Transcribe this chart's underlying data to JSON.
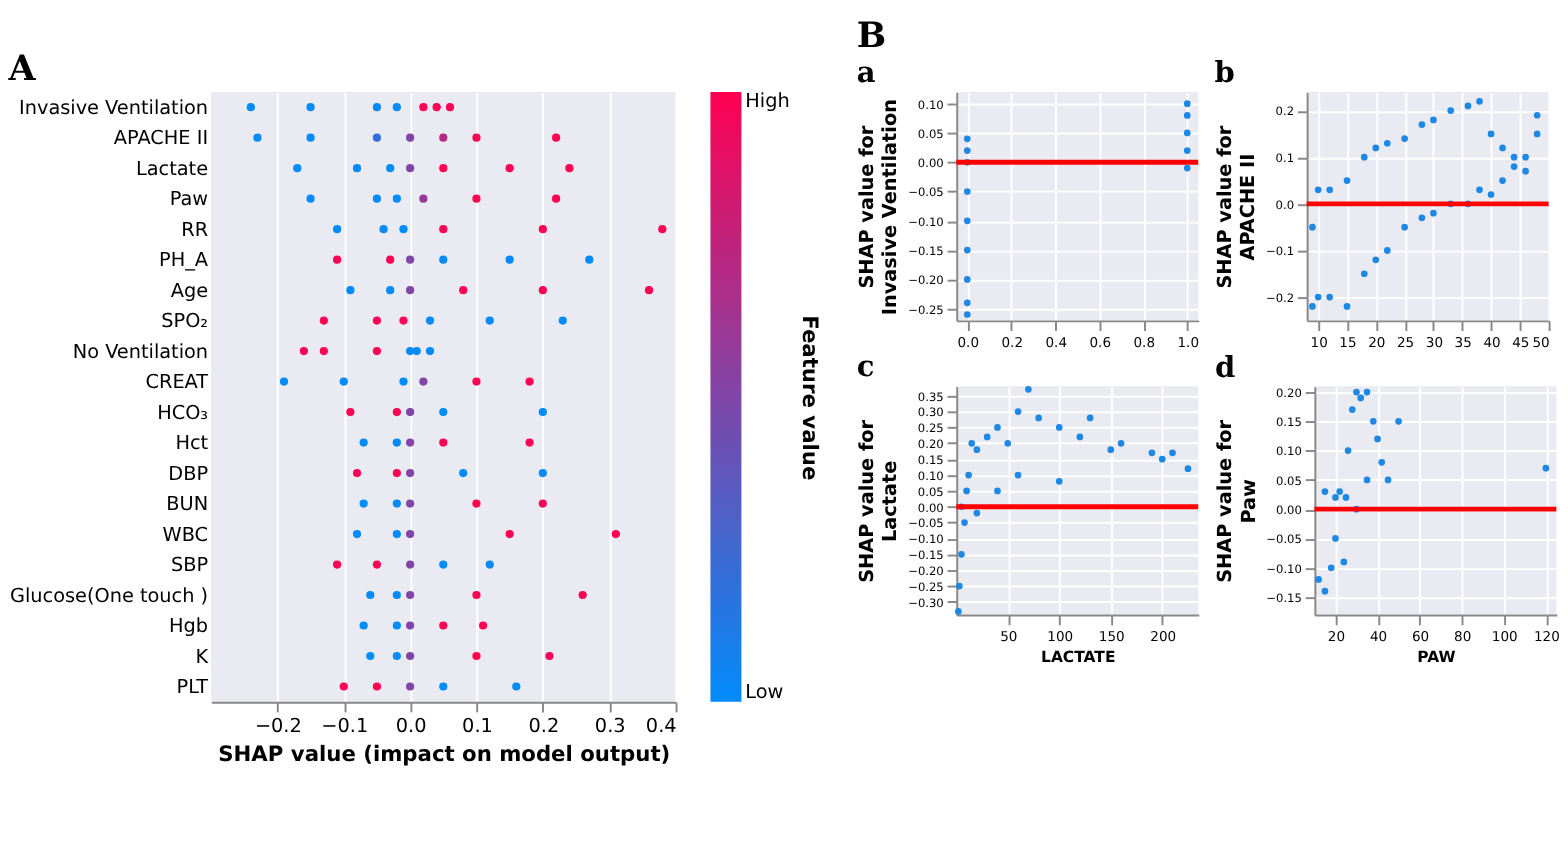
{
  "chart_data": [
    {
      "type": "scatter",
      "title": "A",
      "orientation": "horizontal",
      "xlabel": "SHAP value (impact on model output)",
      "clabel": "Feature value",
      "xlim": [
        -0.3,
        0.4
      ],
      "xticks": [
        {
          "value": -0.2,
          "label": "−0.2"
        },
        {
          "value": -0.1,
          "label": "−0.1"
        },
        {
          "value": 0,
          "label": "0.0"
        },
        0.1,
        0.2,
        0.3,
        0.4
      ],
      "clim": [
        0,
        1
      ],
      "cticks": [
        {
          "value": 0,
          "label": "Low"
        },
        {
          "value": 1,
          "label": "High"
        }
      ],
      "grid": "x",
      "marker": "circle",
      "categories": [
        "Invasive Ventilation",
        "APACHE II",
        "Lactate",
        "Paw",
        "RR",
        "PH_A",
        "Age",
        "SPO₂",
        "No Ventilation",
        "CREAT",
        "HCO₃",
        "Hct",
        "DBP",
        "BUN",
        "WBC",
        "SBP",
        "Glucose(One touch )",
        "Hgb",
        "K",
        "PLT"
      ],
      "series": [
        {
          "x": [
            "Invasive Ventilation",
            "Invasive Ventilation",
            "Invasive Ventilation",
            "Invasive Ventilation",
            "Invasive Ventilation",
            "Invasive Ventilation",
            "Invasive Ventilation",
            "APACHE II",
            "APACHE II",
            "APACHE II",
            "APACHE II",
            "APACHE II",
            "APACHE II",
            "APACHE II",
            "Lactate",
            "Lactate",
            "Lactate",
            "Lactate",
            "Lactate",
            "Lactate",
            "Lactate",
            "Paw",
            "Paw",
            "Paw",
            "Paw",
            "Paw",
            "Paw",
            "RR",
            "RR",
            "RR",
            "RR",
            "RR",
            "RR",
            "PH_A",
            "PH_A",
            "PH_A",
            "PH_A",
            "PH_A",
            "PH_A",
            "Age",
            "Age",
            "Age",
            "Age",
            "Age",
            "Age",
            "SPO₂",
            "SPO₂",
            "SPO₂",
            "SPO₂",
            "SPO₂",
            "SPO₂",
            "No Ventilation",
            "No Ventilation",
            "No Ventilation",
            "No Ventilation",
            "No Ventilation",
            "No Ventilation",
            "CREAT",
            "CREAT",
            "CREAT",
            "CREAT",
            "CREAT",
            "CREAT",
            "HCO₃",
            "HCO₃",
            "HCO₃",
            "HCO₃",
            "HCO₃",
            "Hct",
            "Hct",
            "Hct",
            "Hct",
            "Hct",
            "DBP",
            "DBP",
            "DBP",
            "DBP",
            "DBP",
            "BUN",
            "BUN",
            "BUN",
            "BUN",
            "BUN",
            "WBC",
            "WBC",
            "WBC",
            "WBC",
            "WBC",
            "SBP",
            "SBP",
            "SBP",
            "SBP",
            "SBP",
            "Glucose(One touch )",
            "Glucose(One touch )",
            "Glucose(One touch )",
            "Glucose(One touch )",
            "Glucose(One touch )",
            "Hgb",
            "Hgb",
            "Hgb",
            "Hgb",
            "Hgb",
            "K",
            "K",
            "K",
            "K",
            "K",
            "PLT",
            "PLT",
            "PLT",
            "PLT",
            "PLT"
          ],
          "values": [
            -0.24,
            -0.15,
            -0.05,
            -0.02,
            0.02,
            0.04,
            0.06,
            -0.23,
            -0.15,
            -0.05,
            0.0,
            0.05,
            0.1,
            0.22,
            -0.17,
            -0.08,
            -0.03,
            0.0,
            0.05,
            0.15,
            0.24,
            -0.15,
            -0.05,
            -0.02,
            0.02,
            0.1,
            0.22,
            -0.11,
            -0.04,
            -0.01,
            0.05,
            0.2,
            0.38,
            -0.11,
            -0.03,
            0.0,
            0.05,
            0.15,
            0.27,
            -0.09,
            -0.03,
            0.0,
            0.08,
            0.2,
            0.36,
            -0.13,
            -0.05,
            -0.01,
            0.03,
            0.12,
            0.23,
            -0.16,
            -0.13,
            -0.05,
            0.0,
            0.01,
            0.03,
            -0.19,
            -0.1,
            -0.01,
            0.02,
            0.1,
            0.18,
            -0.09,
            -0.02,
            0.0,
            0.05,
            0.2,
            -0.07,
            -0.02,
            0.0,
            0.05,
            0.18,
            -0.08,
            -0.02,
            0.0,
            0.08,
            0.2,
            -0.07,
            -0.02,
            0.0,
            0.1,
            0.2,
            -0.08,
            -0.02,
            0.0,
            0.15,
            0.31,
            -0.11,
            -0.05,
            0.0,
            0.05,
            0.12,
            -0.06,
            -0.02,
            0.0,
            0.1,
            0.26,
            -0.07,
            -0.02,
            0.0,
            0.05,
            0.11,
            -0.06,
            -0.02,
            0.0,
            0.1,
            0.21,
            -0.1,
            -0.05,
            0.0,
            0.05,
            0.16
          ],
          "cvalues": [
            0,
            0,
            0,
            0,
            1,
            1,
            1,
            0,
            0,
            0.2,
            0.5,
            0.7,
            1,
            1,
            0,
            0,
            0,
            0.5,
            1,
            1,
            1,
            0,
            0,
            0,
            0.6,
            1,
            1,
            0,
            0,
            0,
            1,
            1,
            1,
            1,
            1,
            0.5,
            0,
            0,
            0,
            0,
            0,
            0.5,
            1,
            1,
            1,
            1,
            1,
            1,
            0,
            0,
            0,
            1,
            1,
            1,
            0,
            0,
            0,
            0,
            0,
            0,
            0.5,
            1,
            1,
            1,
            1,
            0.5,
            0,
            0,
            0,
            0,
            0.5,
            1,
            1,
            1,
            1,
            0.5,
            0,
            0,
            0,
            0,
            0.5,
            1,
            1,
            0,
            0,
            0.5,
            1,
            1,
            1,
            1,
            0.5,
            0,
            0,
            0,
            0,
            0.5,
            1,
            1,
            0,
            0,
            0.5,
            1,
            1,
            0,
            0,
            0.5,
            1,
            1,
            1,
            1,
            0.5,
            0,
            0
          ]
        }
      ]
    },
    {
      "type": "scatter",
      "title": "a",
      "annotations": [
        "B"
      ],
      "ylabel": "SHAP value for\nInvasive Ventilation",
      "xlim": [
        -0.05,
        1.05
      ],
      "xticks": [
        {
          "value": 0,
          "label": "0.0"
        },
        0.2,
        0.4,
        0.6,
        0.8,
        {
          "value": 1,
          "label": "1.0"
        }
      ],
      "ylim": [
        -0.27,
        0.12
      ],
      "yticks": [
        {
          "value": -0.25,
          "label": "−0.25"
        },
        {
          "value": -0.2,
          "label": "−0.20"
        },
        {
          "value": -0.15,
          "label": "−0.15"
        },
        {
          "value": -0.1,
          "label": "−0.10"
        },
        {
          "value": -0.05,
          "label": "−0.05"
        },
        {
          "value": 0,
          "label": "0.00"
        },
        0.05,
        {
          "value": 0.1,
          "label": "0.10"
        }
      ],
      "grid": true,
      "marker": "circle",
      "ref_lines": [
        {
          "axis": "y",
          "value": 0,
          "color": "#ff0000"
        }
      ],
      "series": [
        {
          "color": "#1e88e5",
          "x": [
            0,
            0,
            0,
            0,
            0,
            0,
            0,
            0,
            0,
            1,
            1,
            1,
            1,
            1
          ],
          "values": [
            0.04,
            0.02,
            0.0,
            -0.05,
            -0.1,
            -0.15,
            -0.2,
            -0.24,
            -0.26,
            0.1,
            0.08,
            0.05,
            0.02,
            -0.01
          ]
        }
      ]
    },
    {
      "type": "scatter",
      "title": "b",
      "ylabel": "SHAP value for\nAPACHE II",
      "xlim": [
        8,
        50
      ],
      "xticks": [
        10,
        15,
        20,
        25,
        30,
        35,
        40,
        45,
        50
      ],
      "ylim": [
        -0.25,
        0.24
      ],
      "yticks": [
        {
          "value": -0.2,
          "label": "−0.2"
        },
        {
          "value": -0.1,
          "label": "−0.1"
        },
        {
          "value": 0,
          "label": "0.0"
        },
        0.1,
        0.2
      ],
      "grid": true,
      "marker": "circle",
      "ref_lines": [
        {
          "axis": "y",
          "value": 0,
          "color": "#ff0000"
        }
      ],
      "series": [
        {
          "color": "#1e88e5",
          "x": [
            9,
            9,
            10,
            10,
            12,
            12,
            15,
            15,
            18,
            18,
            20,
            20,
            22,
            22,
            25,
            25,
            28,
            28,
            30,
            30,
            33,
            33,
            36,
            36,
            38,
            38,
            40,
            40,
            42,
            42,
            44,
            44,
            46,
            46,
            48,
            48
          ],
          "values": [
            -0.22,
            -0.05,
            -0.2,
            0.03,
            -0.2,
            0.03,
            -0.22,
            0.05,
            -0.15,
            0.1,
            -0.12,
            0.12,
            -0.1,
            0.13,
            -0.05,
            0.14,
            -0.03,
            0.17,
            -0.02,
            0.18,
            0.0,
            0.2,
            0.0,
            0.21,
            0.03,
            0.22,
            0.02,
            0.15,
            0.05,
            0.12,
            0.08,
            0.1,
            0.07,
            0.1,
            0.15,
            0.19
          ]
        }
      ]
    },
    {
      "type": "scatter",
      "title": "c",
      "xlabel": "LACTATE",
      "ylabel": "SHAP value for\nLactate",
      "xlim": [
        0,
        235
      ],
      "xticks": [
        50,
        100,
        150,
        200
      ],
      "ylim": [
        -0.34,
        0.38
      ],
      "yticks": [
        {
          "value": -0.3,
          "label": "−0.30"
        },
        {
          "value": -0.25,
          "label": "−0.25"
        },
        {
          "value": -0.2,
          "label": "−0.20"
        },
        {
          "value": -0.15,
          "label": "−0.15"
        },
        {
          "value": -0.1,
          "label": "−0.10"
        },
        {
          "value": -0.05,
          "label": "−0.05"
        },
        {
          "value": 0,
          "label": "0.00"
        },
        0.05,
        {
          "value": 0.1,
          "label": "0.10"
        },
        0.15,
        {
          "value": 0.2,
          "label": "0.20"
        },
        0.25,
        {
          "value": 0.3,
          "label": "0.30"
        },
        0.35
      ],
      "grid": true,
      "marker": "circle",
      "ref_lines": [
        {
          "axis": "y",
          "value": 0,
          "color": "#ff0000"
        }
      ],
      "series": [
        {
          "color": "#1e88e5",
          "x": [
            2,
            3,
            5,
            8,
            10,
            12,
            15,
            20,
            30,
            40,
            50,
            60,
            70,
            80,
            100,
            120,
            130,
            150,
            160,
            190,
            200,
            210,
            225,
            20,
            40,
            60,
            100,
            5
          ],
          "values": [
            -0.33,
            -0.25,
            -0.15,
            -0.05,
            0.05,
            0.1,
            0.2,
            0.18,
            0.22,
            0.25,
            0.2,
            0.3,
            0.37,
            0.28,
            0.25,
            0.22,
            0.28,
            0.18,
            0.2,
            0.17,
            0.15,
            0.17,
            0.12,
            -0.02,
            0.05,
            0.1,
            0.08,
            0.0
          ]
        }
      ]
    },
    {
      "type": "scatter",
      "title": "d",
      "xlabel": "PAW",
      "ylabel": "SHAP value for\nPaw",
      "xlim": [
        10,
        125
      ],
      "xticks": [
        20,
        40,
        60,
        80,
        100,
        120
      ],
      "ylim": [
        -0.18,
        0.21
      ],
      "yticks": [
        {
          "value": -0.15,
          "label": "−0.15"
        },
        {
          "value": -0.1,
          "label": "−0.10"
        },
        {
          "value": -0.05,
          "label": "−0.05"
        },
        {
          "value": 0,
          "label": "0.00"
        },
        0.05,
        {
          "value": 0.1,
          "label": "0.10"
        },
        0.15,
        {
          "value": 0.2,
          "label": "0.20"
        }
      ],
      "grid": true,
      "marker": "circle",
      "ref_lines": [
        {
          "axis": "y",
          "value": 0,
          "color": "#ff0000"
        }
      ],
      "series": [
        {
          "color": "#1e88e5",
          "x": [
            12,
            15,
            18,
            20,
            22,
            24,
            25,
            26,
            28,
            30,
            32,
            35,
            38,
            40,
            42,
            45,
            50,
            120,
            30,
            35,
            15,
            20
          ],
          "values": [
            -0.12,
            -0.14,
            -0.1,
            -0.05,
            0.03,
            -0.09,
            0.02,
            0.1,
            0.17,
            0.2,
            0.19,
            0.2,
            0.15,
            0.12,
            0.08,
            0.05,
            0.15,
            0.07,
            0.0,
            0.05,
            0.03,
            0.02
          ]
        }
      ]
    }
  ]
}
